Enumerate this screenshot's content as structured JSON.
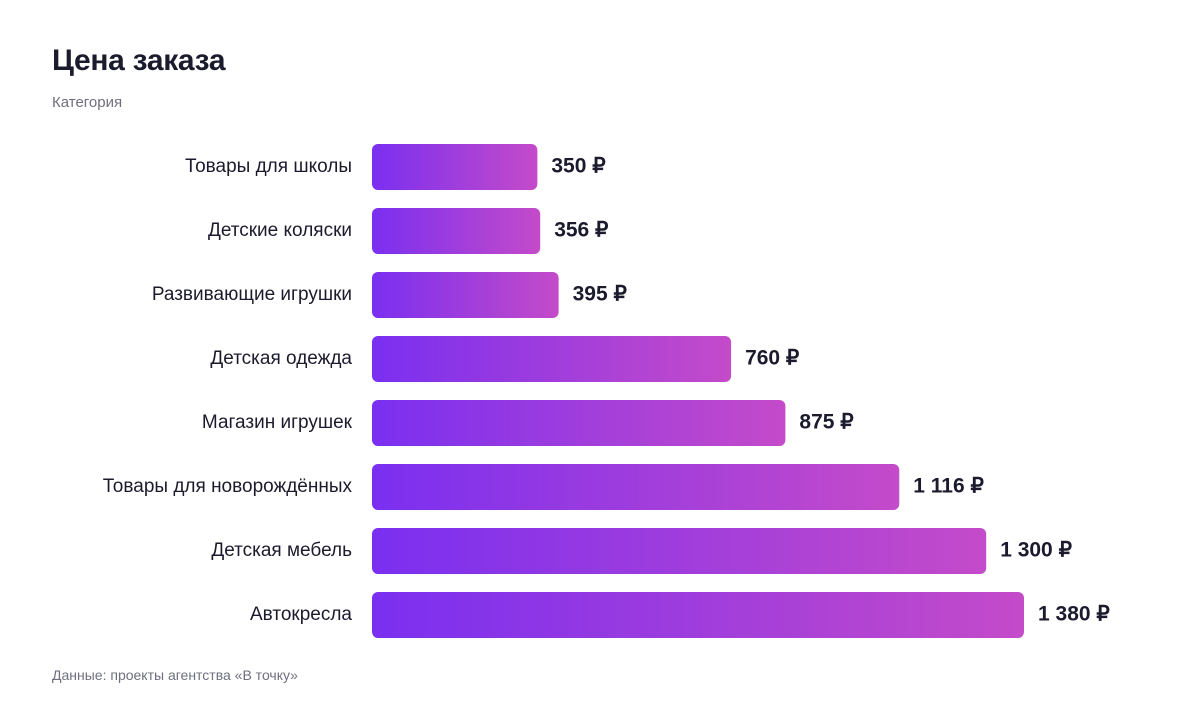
{
  "header": {
    "title": "Цена заказа",
    "subtitle": "Категория"
  },
  "footer": {
    "source": "Данные: проекты агентства «В точку»"
  },
  "colors": {
    "bar_gradient_start": "#7a2ff0",
    "bar_gradient_end": "#c44bc9",
    "text": "#1c1b2e",
    "muted_text": "#6f6f7f"
  },
  "chart_data": {
    "type": "bar",
    "orientation": "horizontal",
    "categories": [
      "Товары для школы",
      "Детские коляски",
      "Развивающие игрушки",
      "Детская одежда",
      "Магазин игрушек",
      "Товары для новорождённых",
      "Детская мебель",
      "Автокресла"
    ],
    "values": [
      350,
      356,
      395,
      760,
      875,
      1116,
      1300,
      1380
    ],
    "value_labels": [
      "350 ₽",
      "356 ₽",
      "395 ₽",
      "760 ₽",
      "875 ₽",
      "1 116 ₽",
      "1 300 ₽",
      "1 380 ₽"
    ],
    "xlim": [
      0,
      1380
    ],
    "grid": false,
    "legend": "none"
  }
}
